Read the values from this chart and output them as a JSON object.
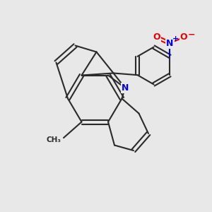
{
  "bg_color": "#e8e8e8",
  "bond_color": "#2a2a2a",
  "N_color": "#0000ee",
  "O_color": "#ee0000",
  "line_width": 1.5,
  "fig_size": [
    3.0,
    3.0
  ],
  "dpi": 100,
  "xlim": [
    0,
    10
  ],
  "ylim": [
    0,
    10
  ]
}
